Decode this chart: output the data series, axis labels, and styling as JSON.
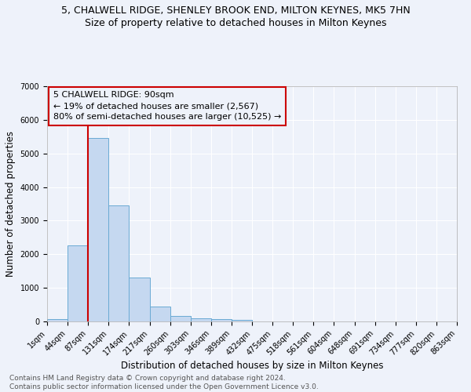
{
  "title": "5, CHALWELL RIDGE, SHENLEY BROOK END, MILTON KEYNES, MK5 7HN",
  "subtitle": "Size of property relative to detached houses in Milton Keynes",
  "xlabel": "Distribution of detached houses by size in Milton Keynes",
  "ylabel": "Number of detached properties",
  "bin_labels": [
    "1sqm",
    "44sqm",
    "87sqm",
    "131sqm",
    "174sqm",
    "217sqm",
    "260sqm",
    "303sqm",
    "346sqm",
    "389sqm",
    "432sqm",
    "475sqm",
    "518sqm",
    "561sqm",
    "604sqm",
    "648sqm",
    "691sqm",
    "734sqm",
    "777sqm",
    "820sqm",
    "863sqm"
  ],
  "bar_values": [
    60,
    2270,
    5450,
    3450,
    1310,
    450,
    175,
    105,
    70,
    50,
    0,
    0,
    0,
    0,
    0,
    0,
    0,
    0,
    0,
    0
  ],
  "bar_color": "#c5d8f0",
  "bar_edge_color": "#6aaad4",
  "vline_x_index": 2,
  "vline_color": "#cc0000",
  "annotation_text": "5 CHALWELL RIDGE: 90sqm\n← 19% of detached houses are smaller (2,567)\n80% of semi-detached houses are larger (10,525) →",
  "annotation_box_color": "#cc0000",
  "ylim": [
    0,
    7000
  ],
  "yticks": [
    0,
    1000,
    2000,
    3000,
    4000,
    5000,
    6000,
    7000
  ],
  "footer": "Contains HM Land Registry data © Crown copyright and database right 2024.\nContains public sector information licensed under the Open Government Licence v3.0.",
  "bg_color": "#eef2fa",
  "grid_color": "#ffffff",
  "title_fontsize": 9,
  "subtitle_fontsize": 9,
  "xlabel_fontsize": 8.5,
  "ylabel_fontsize": 8.5,
  "tick_fontsize": 7,
  "annotation_fontsize": 8,
  "footer_fontsize": 6.5
}
